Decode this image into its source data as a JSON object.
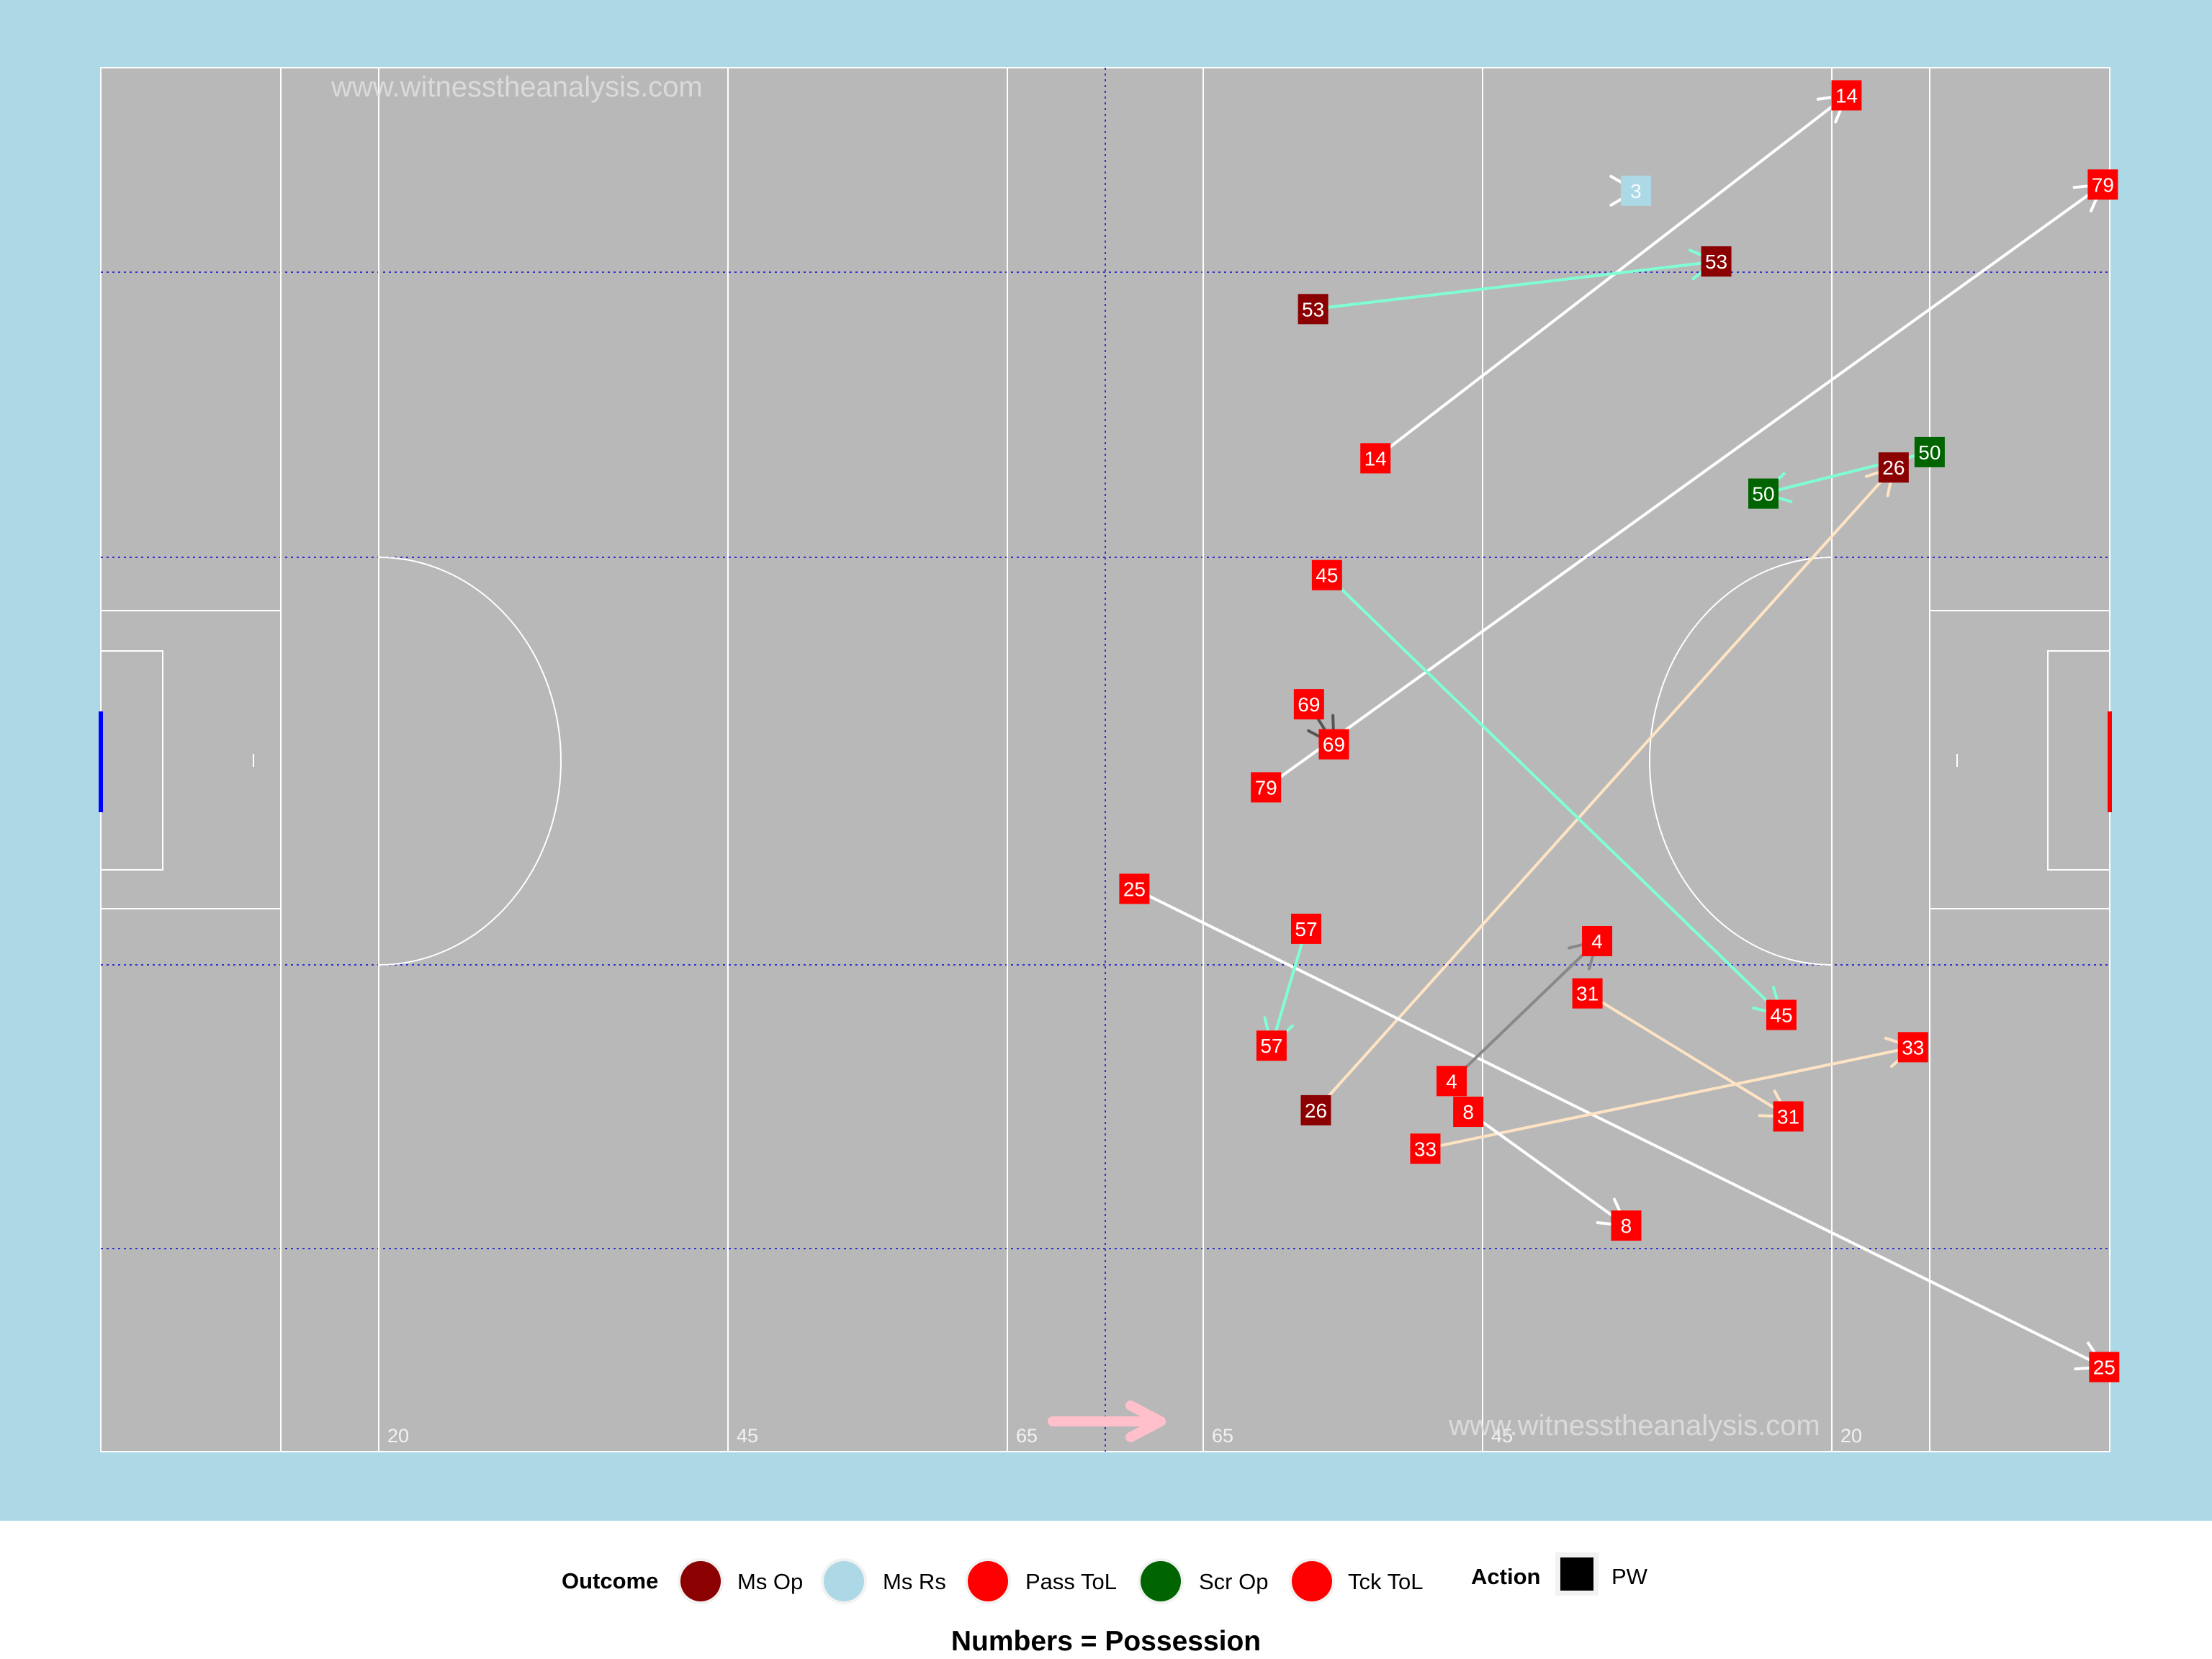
{
  "chart_data": {
    "type": "scatter",
    "title": "",
    "caption": "Numbers = Possession",
    "watermarks": [
      "www.witnesstheanalysis.com",
      "www.witnesstheanalysis.com"
    ],
    "pitch_line_labels": [
      "20",
      "45",
      "65",
      "65",
      "45",
      "20"
    ],
    "xlim": [
      0,
      145
    ],
    "ylim": [
      0,
      90
    ],
    "grid": false,
    "attack_direction": "right",
    "legend": {
      "position": "bottom",
      "outcome_title": "Outcome",
      "action_title": "Action",
      "outcome_items": [
        {
          "label": "Ms Op",
          "color": "#8B0000"
        },
        {
          "label": "Ms Rs",
          "color": "#ADD8E6"
        },
        {
          "label": "Pass ToL",
          "color": "#FF0000"
        },
        {
          "label": "Scr Op",
          "color": "#006400"
        },
        {
          "label": "Tck ToL",
          "color": "#FF0000"
        }
      ],
      "action_items": [
        {
          "label": "PW",
          "color": "#000000"
        }
      ]
    },
    "actions": [
      {
        "possession": "14",
        "outcome": "Pass ToL",
        "x1": 92,
        "y1": 64.6,
        "x2": 126,
        "y2": 88.2,
        "line_color": "#FFFFFF"
      },
      {
        "possession": "79",
        "outcome": "Pass ToL",
        "x1": 84.1,
        "y1": 43.2,
        "x2": 144.5,
        "y2": 82.4,
        "line_color": "#FFFFFF"
      },
      {
        "possession": "3",
        "outcome": "Ms Rs",
        "x1": 110.8,
        "y1": 82.0,
        "x2": 110.8,
        "y2": 82.0,
        "line_color": "#FFFFFF"
      },
      {
        "possession": "53",
        "outcome": "Ms Op",
        "x1": 87.5,
        "y1": 74.3,
        "x2": 116.6,
        "y2": 77.4,
        "line_color": "#7FFFD4"
      },
      {
        "possession": "50",
        "outcome": "Scr Op",
        "x1": 132.0,
        "y1": 65.0,
        "x2": 120.0,
        "y2": 62.3,
        "line_color": "#7FFFD4"
      },
      {
        "possession": "26",
        "outcome": "Ms Op",
        "x1": 87.7,
        "y1": 22.2,
        "x2": 129.4,
        "y2": 64.0,
        "line_color": "#FFE4C4"
      },
      {
        "possession": "45",
        "outcome": "Pass ToL",
        "x1": 88.5,
        "y1": 57.0,
        "x2": 121.3,
        "y2": 28.4,
        "line_color": "#7FFFD4"
      },
      {
        "possession": "69",
        "outcome": "Pass ToL",
        "x1": 87.2,
        "y1": 48.6,
        "x2": 89.0,
        "y2": 46.0,
        "line_color": "#555555"
      },
      {
        "possession": "25",
        "outcome": "Pass ToL",
        "x1": 74.6,
        "y1": 36.6,
        "x2": 144.6,
        "y2": 5.5,
        "line_color": "#FFFFFF"
      },
      {
        "possession": "57",
        "outcome": "Pass ToL",
        "x1": 87.0,
        "y1": 34.0,
        "x2": 84.5,
        "y2": 26.4,
        "line_color": "#7FFFD4"
      },
      {
        "possession": "4",
        "outcome": "Pass ToL",
        "x1": 97.5,
        "y1": 24.1,
        "x2": 108.0,
        "y2": 33.2,
        "line_color": "#888888"
      },
      {
        "possession": "31",
        "outcome": "Pass ToL",
        "x1": 107.3,
        "y1": 29.8,
        "x2": 121.8,
        "y2": 21.8,
        "line_color": "#FFE4C4"
      },
      {
        "possession": "33",
        "outcome": "Pass ToL",
        "x1": 95.6,
        "y1": 19.7,
        "x2": 130.8,
        "y2": 26.3,
        "line_color": "#FFE4C4"
      },
      {
        "possession": "8",
        "outcome": "Pass ToL",
        "x1": 98.7,
        "y1": 22.1,
        "x2": 110.1,
        "y2": 14.7,
        "line_color": "#FFFFFF"
      }
    ]
  }
}
